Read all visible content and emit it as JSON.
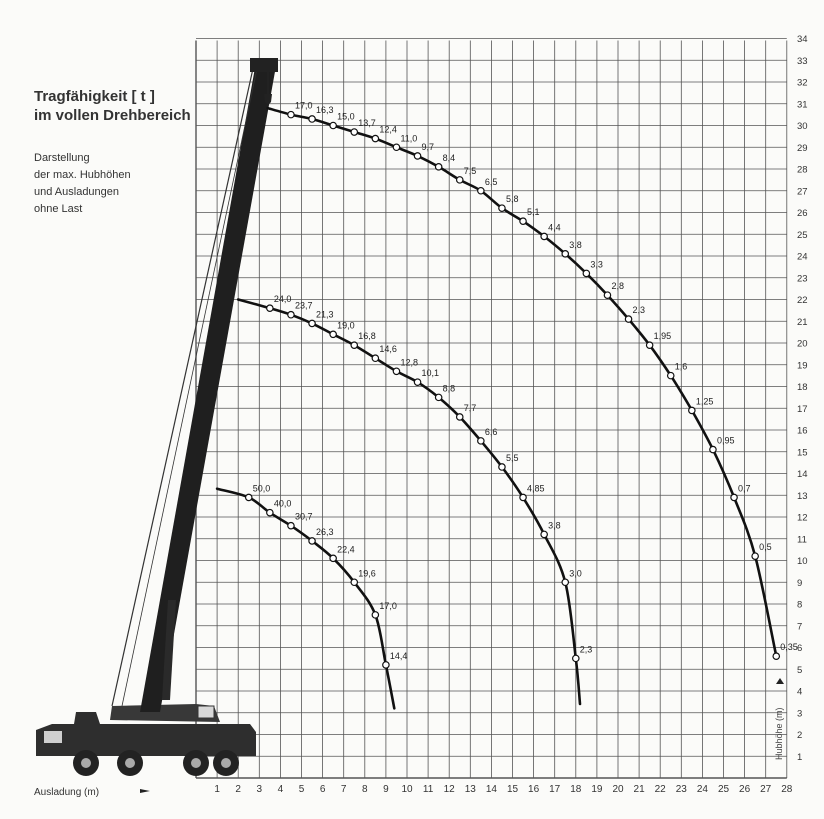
{
  "title": [
    "Tragfähigkeit  [ t ]",
    "im vollen Drehbereich"
  ],
  "subtitle": [
    "Darstellung",
    "der max. Hubhöhen",
    "und Ausladungen",
    "ohne Last"
  ],
  "xlabel": "Ausladung (m)",
  "ylabel": "Hubhöhe (m)",
  "chart_data": {
    "type": "line",
    "title": "Tragfähigkeit  [ t ] im vollen Drehbereich",
    "xlabel": "Ausladung (m)",
    "ylabel": "Hubhöhe (m)",
    "xlim": [
      0,
      28
    ],
    "ylim": [
      0,
      34
    ],
    "x_ticks": [
      1,
      2,
      3,
      4,
      5,
      6,
      7,
      8,
      9,
      10,
      11,
      12,
      13,
      14,
      15,
      16,
      17,
      18,
      19,
      20,
      21,
      22,
      23,
      24,
      25,
      26,
      27,
      28
    ],
    "y_ticks": [
      1,
      2,
      3,
      4,
      5,
      6,
      7,
      8,
      9,
      10,
      11,
      12,
      13,
      14,
      15,
      16,
      17,
      18,
      19,
      20,
      21,
      22,
      23,
      24,
      25,
      26,
      27,
      28,
      29,
      30,
      31,
      32,
      33,
      34
    ],
    "grid": true,
    "series": [
      {
        "points": [
          {
            "x": 1.0,
            "y": 13.3,
            "label": ""
          },
          {
            "x": 2.5,
            "y": 12.9,
            "label": "50,0"
          },
          {
            "x": 3.5,
            "y": 12.2,
            "label": "40,0"
          },
          {
            "x": 4.5,
            "y": 11.6,
            "label": "30,7"
          },
          {
            "x": 5.5,
            "y": 10.9,
            "label": "26,3"
          },
          {
            "x": 6.5,
            "y": 10.1,
            "label": "22,4"
          },
          {
            "x": 7.5,
            "y": 9.0,
            "label": "19,6"
          },
          {
            "x": 8.5,
            "y": 7.5,
            "label": "17,0"
          },
          {
            "x": 9.0,
            "y": 5.2,
            "label": "14,4"
          },
          {
            "x": 9.4,
            "y": 3.2,
            "label": ""
          }
        ]
      },
      {
        "points": [
          {
            "x": 2.0,
            "y": 22.0,
            "label": ""
          },
          {
            "x": 3.5,
            "y": 21.6,
            "label": "24,0"
          },
          {
            "x": 4.5,
            "y": 21.3,
            "label": "23,7"
          },
          {
            "x": 5.5,
            "y": 20.9,
            "label": "21,3"
          },
          {
            "x": 6.5,
            "y": 20.4,
            "label": "19,0"
          },
          {
            "x": 7.5,
            "y": 19.9,
            "label": "16,8"
          },
          {
            "x": 8.5,
            "y": 19.3,
            "label": "14,6"
          },
          {
            "x": 9.5,
            "y": 18.7,
            "label": "12,8"
          },
          {
            "x": 10.5,
            "y": 18.2,
            "label": "10,1"
          },
          {
            "x": 11.5,
            "y": 17.5,
            "label": "8,8"
          },
          {
            "x": 12.5,
            "y": 16.6,
            "label": "7,7"
          },
          {
            "x": 13.5,
            "y": 15.5,
            "label": "6,6"
          },
          {
            "x": 14.5,
            "y": 14.3,
            "label": "5,5"
          },
          {
            "x": 15.5,
            "y": 12.9,
            "label": "4,85"
          },
          {
            "x": 16.5,
            "y": 11.2,
            "label": "3,8"
          },
          {
            "x": 17.5,
            "y": 9.0,
            "label": "3,0"
          },
          {
            "x": 18.0,
            "y": 5.5,
            "label": "2,3"
          },
          {
            "x": 18.2,
            "y": 3.4,
            "label": ""
          }
        ]
      },
      {
        "points": [
          {
            "x": 3.4,
            "y": 30.8,
            "label": ""
          },
          {
            "x": 4.5,
            "y": 30.5,
            "label": "17,0"
          },
          {
            "x": 5.5,
            "y": 30.3,
            "label": "16,3"
          },
          {
            "x": 6.5,
            "y": 30.0,
            "label": "15,0"
          },
          {
            "x": 7.5,
            "y": 29.7,
            "label": "13,7"
          },
          {
            "x": 8.5,
            "y": 29.4,
            "label": "12,4"
          },
          {
            "x": 9.5,
            "y": 29.0,
            "label": "11,0"
          },
          {
            "x": 10.5,
            "y": 28.6,
            "label": "9,7"
          },
          {
            "x": 11.5,
            "y": 28.1,
            "label": "8,4"
          },
          {
            "x": 12.5,
            "y": 27.5,
            "label": "7,5"
          },
          {
            "x": 13.5,
            "y": 27.0,
            "label": "6,5"
          },
          {
            "x": 14.5,
            "y": 26.2,
            "label": "5,8"
          },
          {
            "x": 15.5,
            "y": 25.6,
            "label": "5,1"
          },
          {
            "x": 16.5,
            "y": 24.9,
            "label": "4,4"
          },
          {
            "x": 17.5,
            "y": 24.1,
            "label": "3,8"
          },
          {
            "x": 18.5,
            "y": 23.2,
            "label": "3,3"
          },
          {
            "x": 19.5,
            "y": 22.2,
            "label": "2,8"
          },
          {
            "x": 20.5,
            "y": 21.1,
            "label": "2,3"
          },
          {
            "x": 21.5,
            "y": 19.9,
            "label": "1,95"
          },
          {
            "x": 22.5,
            "y": 18.5,
            "label": "1,6"
          },
          {
            "x": 23.5,
            "y": 16.9,
            "label": "1,25"
          },
          {
            "x": 24.5,
            "y": 15.1,
            "label": "0,95"
          },
          {
            "x": 25.5,
            "y": 12.9,
            "label": "0,7"
          },
          {
            "x": 26.5,
            "y": 10.2,
            "label": "0,5"
          },
          {
            "x": 27.5,
            "y": 5.6,
            "label": "0,35"
          }
        ]
      }
    ]
  }
}
